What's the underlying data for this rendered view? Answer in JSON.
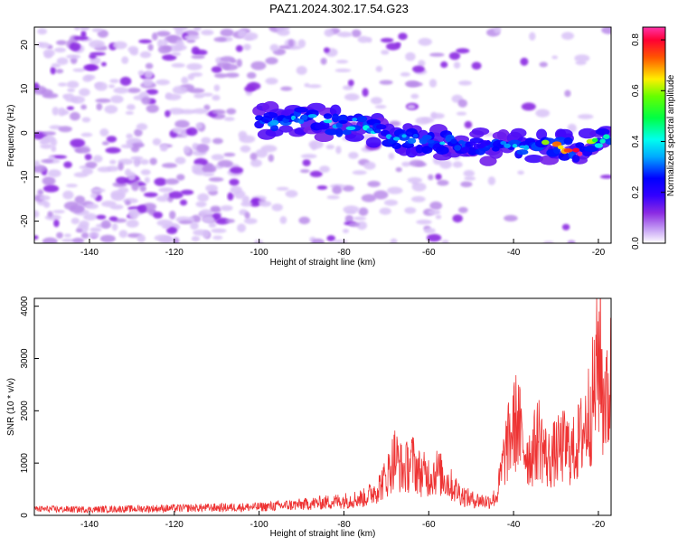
{
  "title": "PAZ1.2024.302.17.54.G23",
  "chart_data": [
    {
      "type": "heatmap",
      "xlabel": "Height of straight line (km)",
      "ylabel": "Frequency (Hz)",
      "xlim": [
        -153,
        -17
      ],
      "ylim": [
        -25,
        24
      ],
      "x_ticks": [
        -140,
        -120,
        -100,
        -80,
        -60,
        -40,
        -20
      ],
      "y_ticks": [
        -20,
        -10,
        0,
        10,
        20
      ],
      "colorbar": {
        "label": "Normalized spectral amplitude",
        "range": [
          0,
          0.85
        ],
        "ticks": [
          0.0,
          0.2,
          0.4,
          0.6,
          0.8
        ]
      },
      "ridge": [
        {
          "x": -100,
          "f": 3,
          "amp": 0.32
        },
        {
          "x": -95,
          "f": 2.5,
          "amp": 0.35
        },
        {
          "x": -90,
          "f": 3.5,
          "amp": 0.38
        },
        {
          "x": -85,
          "f": 2.5,
          "amp": 0.4
        },
        {
          "x": -80,
          "f": 1.5,
          "amp": 0.36
        },
        {
          "x": -76,
          "f": 2.5,
          "amp": 0.42
        },
        {
          "x": -72,
          "f": 0.5,
          "amp": 0.38
        },
        {
          "x": -68,
          "f": -1,
          "amp": 0.36
        },
        {
          "x": -64,
          "f": -1.5,
          "amp": 0.38
        },
        {
          "x": -60,
          "f": -2,
          "amp": 0.4
        },
        {
          "x": -56,
          "f": -2,
          "amp": 0.38
        },
        {
          "x": -52,
          "f": -3,
          "amp": 0.3
        },
        {
          "x": -48,
          "f": -3,
          "amp": 0.25
        },
        {
          "x": -44,
          "f": -3,
          "amp": 0.3
        },
        {
          "x": -40,
          "f": -3,
          "amp": 0.4
        },
        {
          "x": -36,
          "f": -3,
          "amp": 0.5
        },
        {
          "x": -32,
          "f": -3,
          "amp": 0.62
        },
        {
          "x": -28,
          "f": -3.5,
          "amp": 0.78
        },
        {
          "x": -24,
          "f": -4,
          "amp": 0.82
        },
        {
          "x": -20,
          "f": -2,
          "amp": 0.5
        },
        {
          "x": -17,
          "f": -1,
          "amp": 0.4
        }
      ]
    },
    {
      "type": "line",
      "xlabel": "Height of straight line (km)",
      "ylabel": "SNR (10 * v/v)",
      "xlim": [
        -153,
        -17
      ],
      "ylim": [
        0,
        4150
      ],
      "x_ticks": [
        -140,
        -120,
        -100,
        -80,
        -60,
        -40,
        -20
      ],
      "y_ticks": [
        0,
        1000,
        2000,
        3000,
        4000
      ],
      "color": "#ee3333",
      "series": [
        {
          "x": [
            -153,
            -140,
            -120,
            -100,
            -90,
            -80,
            -75,
            -72,
            -70,
            -68,
            -66,
            -64,
            -62,
            -60,
            -58,
            -56,
            -54,
            -52,
            -50,
            -48,
            -46,
            -44,
            -43,
            -42,
            -41,
            -40,
            -39,
            -38,
            -36,
            -34,
            -32,
            -30,
            -28,
            -26,
            -24,
            -22,
            -21,
            -20,
            -19.5,
            -19,
            -18.5,
            -18,
            -17
          ],
          "values": [
            150,
            140,
            170,
            200,
            260,
            350,
            420,
            650,
            900,
            1400,
            1050,
            1300,
            1000,
            950,
            1050,
            850,
            650,
            480,
            380,
            360,
            330,
            450,
            950,
            1500,
            1800,
            2100,
            2300,
            1700,
            1400,
            1900,
            1300,
            1500,
            1650,
            1500,
            1900,
            2500,
            2900,
            3800,
            4100,
            2700,
            3100,
            2600,
            3300
          ]
        }
      ]
    }
  ]
}
